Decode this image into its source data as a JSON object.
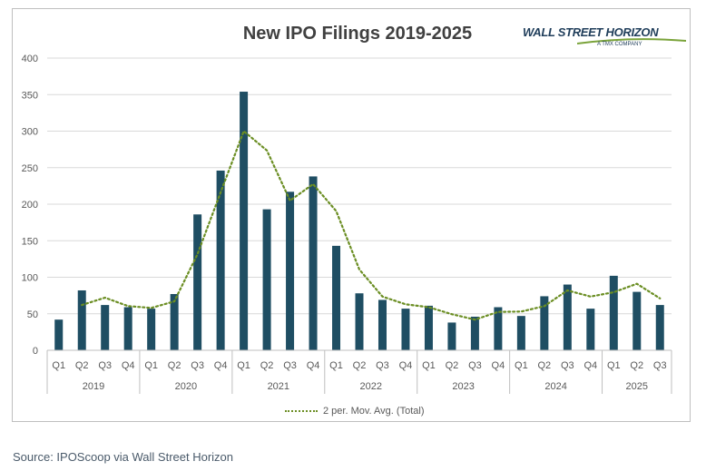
{
  "source_note": "Source: IPOScoop via Wall Street Horizon",
  "logo": {
    "main": "WALL STREET HORIZON",
    "sub": "A TMX COMPANY"
  },
  "colors": {
    "bar": "#1f4e63",
    "moving_avg": "#6b8e23",
    "grid": "#d9d9d9",
    "axis_text": "#595959"
  },
  "chart_data": {
    "type": "bar",
    "title": "New IPO Filings 2019-2025",
    "xlabel": "",
    "ylabel": "",
    "ylim": [
      0,
      400
    ],
    "yticks": [
      0,
      50,
      100,
      150,
      200,
      250,
      300,
      350,
      400
    ],
    "grid": true,
    "legend_position": "bottom",
    "groups": [
      {
        "label": "2019",
        "quarters": [
          "Q1",
          "Q2",
          "Q3",
          "Q4"
        ]
      },
      {
        "label": "2020",
        "quarters": [
          "Q1",
          "Q2",
          "Q3",
          "Q4"
        ]
      },
      {
        "label": "2021",
        "quarters": [
          "Q1",
          "Q2",
          "Q3",
          "Q4"
        ]
      },
      {
        "label": "2022",
        "quarters": [
          "Q1",
          "Q2",
          "Q3",
          "Q4"
        ]
      },
      {
        "label": "2023",
        "quarters": [
          "Q1",
          "Q2",
          "Q3",
          "Q4"
        ]
      },
      {
        "label": "2024",
        "quarters": [
          "Q1",
          "Q2",
          "Q3",
          "Q4"
        ]
      },
      {
        "label": "2025",
        "quarters": [
          "Q1",
          "Q2",
          "Q3"
        ]
      }
    ],
    "values": [
      42,
      82,
      62,
      59,
      57,
      77,
      186,
      246,
      354,
      193,
      217,
      238,
      143,
      78,
      69,
      57,
      61,
      38,
      46,
      59,
      47,
      74,
      90,
      57,
      102,
      80,
      62
    ],
    "moving_average": {
      "name": "2 per. Mov. Avg. (Total)",
      "values": [
        null,
        62,
        72,
        60.5,
        58,
        67,
        131.5,
        216,
        300,
        273.5,
        205,
        227.5,
        190.5,
        110.5,
        73.5,
        63,
        59,
        49.5,
        42,
        52.5,
        53,
        60.5,
        82,
        73.5,
        79.5,
        91,
        71
      ]
    }
  }
}
